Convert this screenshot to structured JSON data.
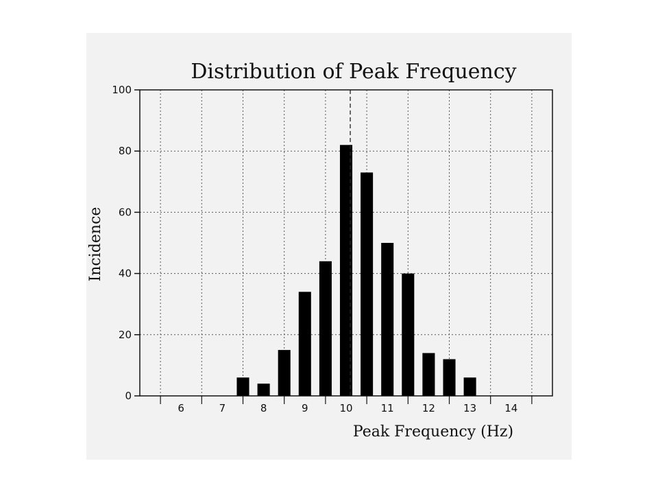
{
  "chart_data": {
    "type": "bar",
    "title": "Distribution of Peak Frequency",
    "xlabel": "Peak Frequency (Hz)",
    "ylabel": "Incidence",
    "x_ticks": [
      6,
      7,
      8,
      9,
      10,
      11,
      12,
      13,
      14
    ],
    "y_ticks": [
      0,
      20,
      40,
      60,
      80,
      100
    ],
    "xlim": [
      5,
      15
    ],
    "ylim": [
      0,
      100
    ],
    "bar_width": 0.3,
    "bars": [
      {
        "x": 7.5,
        "value": 6
      },
      {
        "x": 8.0,
        "value": 4
      },
      {
        "x": 8.5,
        "value": 15
      },
      {
        "x": 9.0,
        "value": 34
      },
      {
        "x": 9.5,
        "value": 44
      },
      {
        "x": 10.0,
        "value": 82
      },
      {
        "x": 10.5,
        "value": 73
      },
      {
        "x": 11.0,
        "value": 50
      },
      {
        "x": 11.5,
        "value": 40
      },
      {
        "x": 12.0,
        "value": 14
      },
      {
        "x": 12.5,
        "value": 12
      },
      {
        "x": 13.0,
        "value": 6
      }
    ],
    "reference_line_x": 10.1,
    "grid": true,
    "bar_color": "#000000"
  }
}
